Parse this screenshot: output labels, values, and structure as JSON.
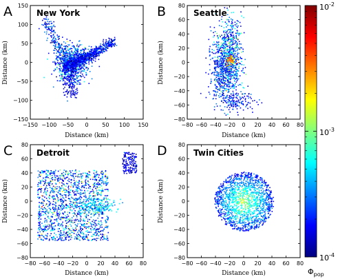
{
  "chart_data": [
    {
      "type": "scatter",
      "panel_letter": "A",
      "title": "New York",
      "xlabel": "Distance (km)",
      "ylabel": "Distance (km)",
      "xlim": [
        -150,
        150
      ],
      "ylim": [
        -150,
        150
      ],
      "xticks": [
        "−150",
        "−100",
        "−50",
        "0",
        "50",
        "100",
        "150"
      ],
      "yticks": [
        "150",
        "100",
        "50",
        "0",
        "−50",
        "−100",
        "−150"
      ],
      "grid": false
    },
    {
      "type": "scatter",
      "panel_letter": "B",
      "title": "Seattle",
      "xlabel": "Distance (km)",
      "ylabel": "Distance (km)",
      "xlim": [
        -80,
        80
      ],
      "ylim": [
        -80,
        80
      ],
      "xticks": [
        "−80",
        "−60",
        "−40",
        "−20",
        "0",
        "20",
        "40",
        "60",
        "80"
      ],
      "yticks": [
        "80",
        "60",
        "40",
        "20",
        "0",
        "−20",
        "−40",
        "−60",
        "−80"
      ],
      "grid": false
    },
    {
      "type": "scatter",
      "panel_letter": "C",
      "title": "Detroit",
      "xlabel": "Distance (km)",
      "ylabel": "Distance (km)",
      "xlim": [
        -80,
        80
      ],
      "ylim": [
        -80,
        80
      ],
      "xticks": [
        "−80",
        "−60",
        "−40",
        "−20",
        "0",
        "20",
        "40",
        "60",
        "80"
      ],
      "yticks": [
        "80",
        "60",
        "40",
        "20",
        "0",
        "−20",
        "−40",
        "−60",
        "−80"
      ],
      "grid": false
    },
    {
      "type": "scatter",
      "panel_letter": "D",
      "title": "Twin Cities",
      "xlabel": "Distance (km)",
      "ylabel": "Distance (km)",
      "xlim": [
        -80,
        80
      ],
      "ylim": [
        -80,
        80
      ],
      "xticks": [
        "−80",
        "−60",
        "−40",
        "−20",
        "0",
        "20",
        "40",
        "60",
        "80"
      ],
      "yticks": [
        "80",
        "60",
        "40",
        "20",
        "0",
        "−20",
        "−40",
        "−60",
        "−80"
      ],
      "grid": false
    }
  ],
  "colorbar": {
    "label": "Φ",
    "label_subscript": "pop",
    "scale": "log",
    "range": [
      0.0001,
      0.01
    ],
    "ticks": [
      {
        "base": "10",
        "exponent": "-2"
      },
      {
        "base": "10",
        "exponent": "-3"
      },
      {
        "base": "10",
        "exponent": "-4"
      }
    ],
    "colormap": [
      "#00007f",
      "#0000ff",
      "#007fff",
      "#00ffff",
      "#7fff7f",
      "#ffff00",
      "#ff7f00",
      "#ff0000",
      "#7f0000"
    ]
  }
}
